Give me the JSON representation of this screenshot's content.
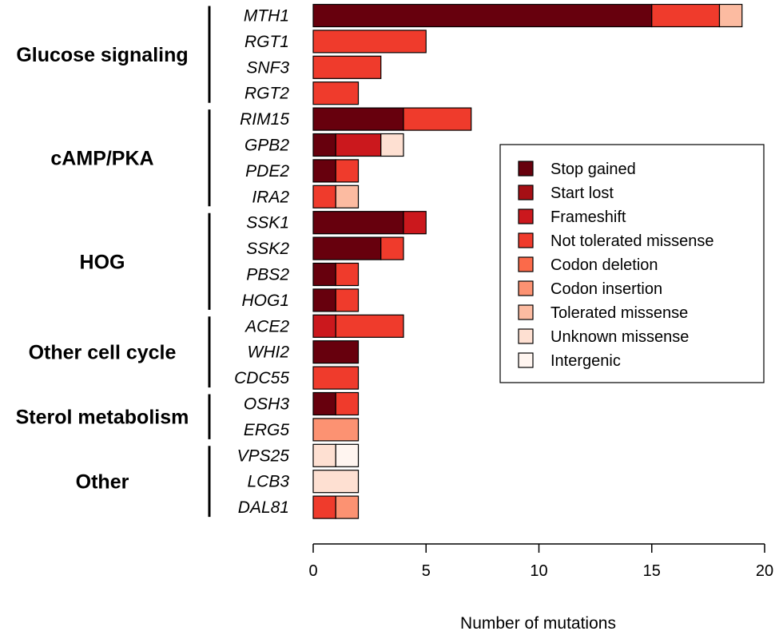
{
  "chart_data": {
    "type": "bar",
    "orientation": "horizontal",
    "stacked": true,
    "xlabel": "Number of mutations",
    "xlim": [
      0,
      20
    ],
    "xticks": [
      0,
      5,
      10,
      15,
      20
    ],
    "grid": false,
    "legend_position": "right",
    "categories": [
      "MTH1",
      "RGT1",
      "SNF3",
      "RGT2",
      "RIM15",
      "GPB2",
      "PDE2",
      "IRA2",
      "SSK1",
      "SSK2",
      "PBS2",
      "HOG1",
      "ACE2",
      "WHI2",
      "CDC55",
      "OSH3",
      "ERG5",
      "VPS25",
      "LCB3",
      "DAL81"
    ],
    "groups": [
      {
        "name": "Glucose signaling",
        "genes": [
          "MTH1",
          "RGT1",
          "SNF3",
          "RGT2"
        ]
      },
      {
        "name": "cAMP/PKA",
        "genes": [
          "RIM15",
          "GPB2",
          "PDE2",
          "IRA2"
        ]
      },
      {
        "name": "HOG",
        "genes": [
          "SSK1",
          "SSK2",
          "PBS2",
          "HOG1"
        ]
      },
      {
        "name": "Other cell cycle",
        "genes": [
          "ACE2",
          "WHI2",
          "CDC55"
        ]
      },
      {
        "name": "Sterol metabolism",
        "genes": [
          "OSH3",
          "ERG5"
        ]
      },
      {
        "name": "Other",
        "genes": [
          "VPS25",
          "LCB3",
          "DAL81"
        ]
      }
    ],
    "series": [
      {
        "name": "Stop gained",
        "color": "#67000d",
        "values": [
          15,
          0,
          0,
          0,
          4,
          1,
          1,
          0,
          4,
          3,
          1,
          1,
          0,
          2,
          0,
          1,
          0,
          0,
          0,
          0
        ]
      },
      {
        "name": "Start lost",
        "color": "#a50f15",
        "values": [
          0,
          0,
          0,
          0,
          0,
          0,
          0,
          0,
          0,
          0,
          0,
          0,
          0,
          0,
          0,
          0,
          0,
          0,
          0,
          0
        ]
      },
      {
        "name": "Frameshift",
        "color": "#cb181d",
        "values": [
          0,
          0,
          0,
          0,
          0,
          2,
          0,
          0,
          1,
          0,
          0,
          0,
          1,
          0,
          0,
          0,
          0,
          0,
          0,
          0
        ]
      },
      {
        "name": "Not tolerated missense",
        "color": "#ef3b2c",
        "values": [
          3,
          5,
          3,
          2,
          3,
          0,
          1,
          1,
          0,
          1,
          1,
          1,
          3,
          0,
          2,
          1,
          0,
          0,
          0,
          1
        ]
      },
      {
        "name": "Codon deletion",
        "color": "#fb6a4a",
        "values": [
          0,
          0,
          0,
          0,
          0,
          0,
          0,
          0,
          0,
          0,
          0,
          0,
          0,
          0,
          0,
          0,
          0,
          0,
          0,
          0
        ]
      },
      {
        "name": "Codon insertion",
        "color": "#fc9272",
        "values": [
          0,
          0,
          0,
          0,
          0,
          0,
          0,
          0,
          0,
          0,
          0,
          0,
          0,
          0,
          0,
          0,
          2,
          0,
          0,
          1
        ]
      },
      {
        "name": "Tolerated missense",
        "color": "#fcbba1",
        "values": [
          1,
          0,
          0,
          0,
          0,
          0,
          0,
          1,
          0,
          0,
          0,
          0,
          0,
          0,
          0,
          0,
          0,
          0,
          0,
          0
        ]
      },
      {
        "name": "Unknown missense",
        "color": "#fee0d2",
        "values": [
          0,
          0,
          0,
          0,
          0,
          1,
          0,
          0,
          0,
          0,
          0,
          0,
          0,
          0,
          0,
          0,
          0,
          1,
          2,
          0
        ]
      },
      {
        "name": "Intergenic",
        "color": "#fff5f0",
        "values": [
          0,
          0,
          0,
          0,
          0,
          0,
          0,
          0,
          0,
          0,
          0,
          0,
          0,
          0,
          0,
          0,
          0,
          1,
          0,
          0
        ]
      }
    ]
  }
}
